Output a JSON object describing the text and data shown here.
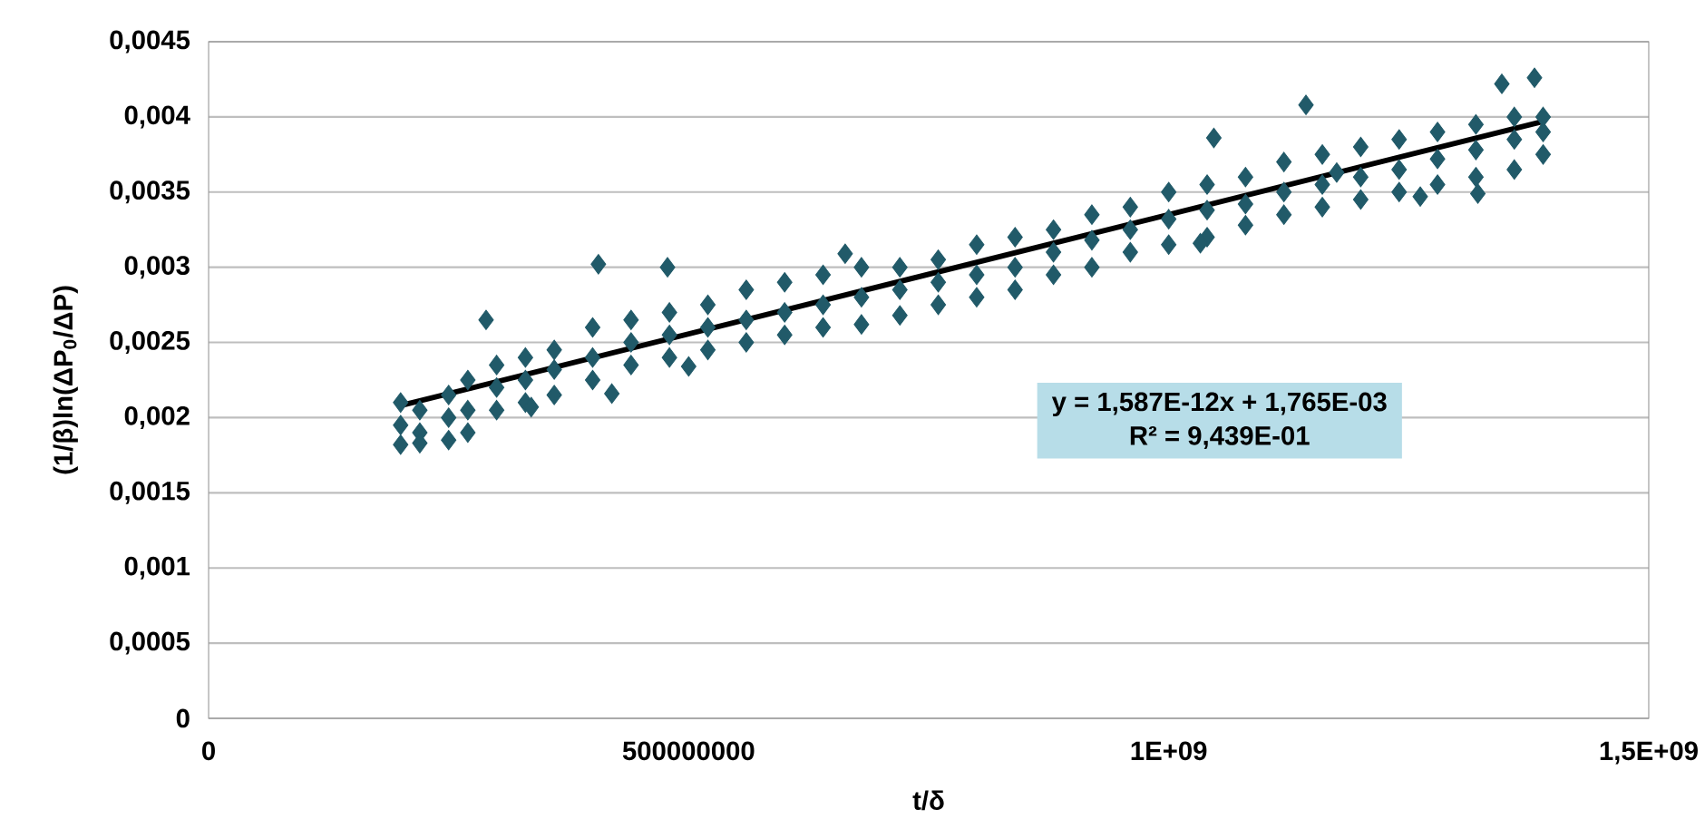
{
  "chart_data": {
    "type": "scatter",
    "xlabel": "t/δ",
    "ylabel": "(1/β)ln(ΔP$_{0}$/ΔP)",
    "xlim": [
      0,
      1500000000
    ],
    "ylim": [
      0,
      0.0045
    ],
    "xticks": [
      0,
      500000000,
      {
        "value": 1000000000,
        "label": "1E+09"
      },
      {
        "value": 1500000000,
        "label": "1,5E+09"
      }
    ],
    "yticks": [
      0,
      {
        "value": 0.0005,
        "label": "0,0005"
      },
      {
        "value": 0.001,
        "label": "0,001"
      },
      {
        "value": 0.0015,
        "label": "0,0015"
      },
      {
        "value": 0.002,
        "label": "0,002"
      },
      {
        "value": 0.0025,
        "label": "0,0025"
      },
      {
        "value": 0.003,
        "label": "0,003"
      },
      {
        "value": 0.0035,
        "label": "0,0035"
      },
      {
        "value": 0.004,
        "label": "0,004"
      },
      {
        "value": 0.0045,
        "label": "0,0045"
      }
    ],
    "grid": "y",
    "marker": "diamond",
    "annotations": [
      "y = 1,587E-12x + 1,765E-03",
      "R² = 9,439E-01"
    ],
    "series": [
      {
        "color": "#215a69",
        "x": [
          200000000,
          200000000,
          200000000,
          220000000,
          220000000,
          220000000,
          250000000,
          250000000,
          250000000,
          270000000,
          270000000,
          270000000,
          300000000,
          300000000,
          300000000,
          330000000,
          330000000,
          330000000,
          360000000,
          360000000,
          360000000,
          400000000,
          400000000,
          400000000,
          440000000,
          440000000,
          440000000,
          480000000,
          480000000,
          480000000,
          520000000,
          520000000,
          520000000,
          560000000,
          560000000,
          560000000,
          600000000,
          600000000,
          600000000,
          640000000,
          640000000,
          640000000,
          680000000,
          680000000,
          680000000,
          720000000,
          720000000,
          720000000,
          760000000,
          760000000,
          760000000,
          800000000,
          800000000,
          800000000,
          840000000,
          840000000,
          840000000,
          880000000,
          880000000,
          880000000,
          920000000,
          920000000,
          920000000,
          960000000,
          960000000,
          960000000,
          1000000000,
          1000000000,
          1000000000,
          1040000000,
          1040000000,
          1040000000,
          1080000000,
          1080000000,
          1080000000,
          1120000000,
          1120000000,
          1120000000,
          1160000000,
          1160000000,
          1160000000,
          1200000000,
          1200000000,
          1200000000,
          1240000000,
          1240000000,
          1240000000,
          1280000000,
          1280000000,
          1280000000,
          1320000000,
          1320000000,
          1320000000,
          1360000000,
          1360000000,
          1360000000,
          1390000000,
          1390000000,
          1390000000,
          289000000,
          406000000,
          478000000,
          663000000,
          336000000,
          420000000,
          500000000,
          1381000000,
          1347000000,
          1143000000,
          1175000000,
          1262000000,
          1322000000,
          1047000000,
          1033000000
        ],
        "values": [
          0.0021,
          0.00195,
          0.00182,
          0.00205,
          0.0019,
          0.00183,
          0.00215,
          0.002,
          0.00185,
          0.00225,
          0.00205,
          0.0019,
          0.00235,
          0.0022,
          0.00205,
          0.0024,
          0.00225,
          0.0021,
          0.00245,
          0.00232,
          0.00215,
          0.0026,
          0.0024,
          0.00225,
          0.00265,
          0.0025,
          0.00235,
          0.0027,
          0.00255,
          0.0024,
          0.00275,
          0.0026,
          0.00245,
          0.00285,
          0.00265,
          0.0025,
          0.0029,
          0.0027,
          0.00255,
          0.00295,
          0.00275,
          0.0026,
          0.003,
          0.0028,
          0.00262,
          0.003,
          0.00285,
          0.00268,
          0.00305,
          0.0029,
          0.00275,
          0.00315,
          0.00295,
          0.0028,
          0.0032,
          0.003,
          0.00285,
          0.00325,
          0.0031,
          0.00295,
          0.00335,
          0.00318,
          0.003,
          0.0034,
          0.00325,
          0.0031,
          0.0035,
          0.00332,
          0.00315,
          0.00355,
          0.00338,
          0.0032,
          0.0036,
          0.00342,
          0.00328,
          0.0037,
          0.0035,
          0.00335,
          0.00375,
          0.00355,
          0.0034,
          0.0038,
          0.0036,
          0.00345,
          0.00385,
          0.00365,
          0.0035,
          0.0039,
          0.00372,
          0.00355,
          0.00395,
          0.00378,
          0.0036,
          0.004,
          0.00385,
          0.00365,
          0.004,
          0.0039,
          0.00375,
          0.00265,
          0.00302,
          0.003,
          0.00309,
          0.00207,
          0.00216,
          0.00234,
          0.00426,
          0.00422,
          0.00408,
          0.00363,
          0.00347,
          0.00349,
          0.00386,
          0.00316
        ]
      },
      {
        "type": "line",
        "color": "#000000",
        "marker": "none",
        "x": [
          200000000,
          1390000000
        ],
        "values": [
          0.00208,
          0.00397
        ]
      }
    ]
  }
}
